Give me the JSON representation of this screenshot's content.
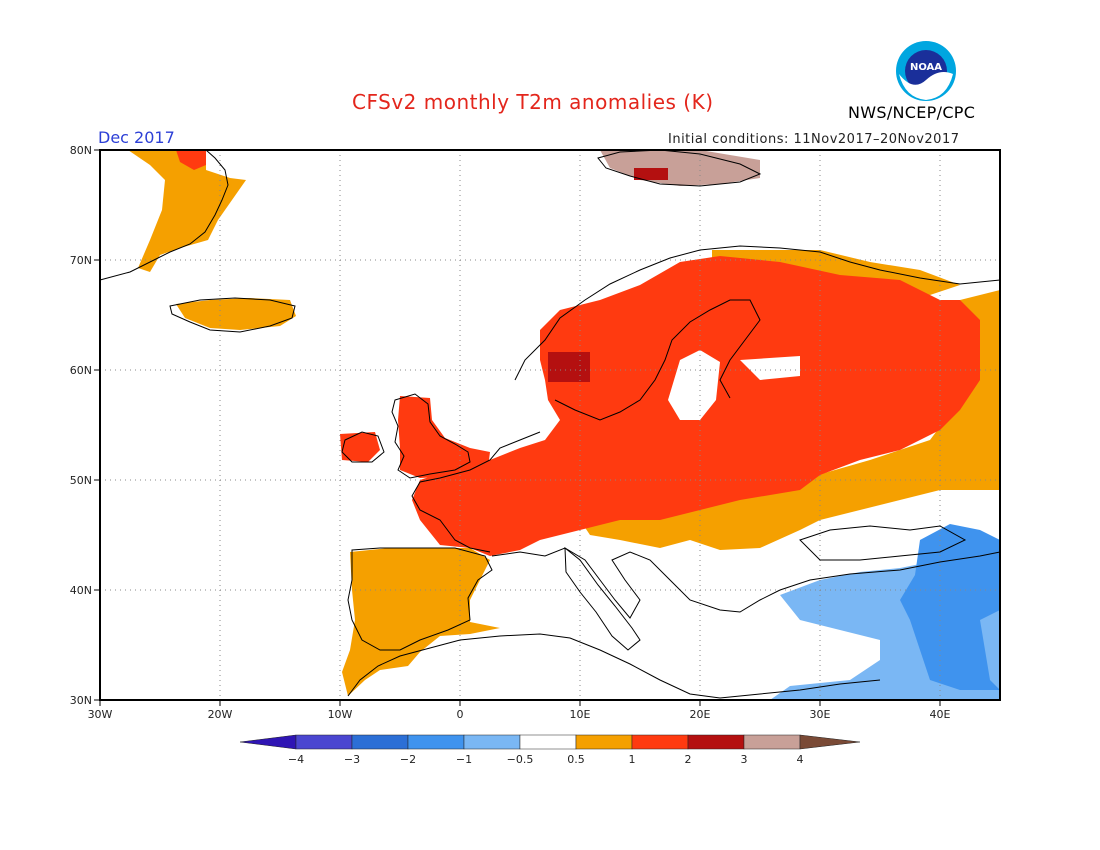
{
  "header": {
    "title": "CFSv2 monthly T2m anomalies (K)",
    "agency": "NWS/NCEP/CPC",
    "logo_text": "NOAA",
    "period": "Dec 2017",
    "initial_conditions": "Initial conditions: 11Nov2017–20Nov2017"
  },
  "map": {
    "projection": "lat-lon",
    "lon_range": [
      -30,
      45
    ],
    "lat_range": [
      30,
      80
    ],
    "lon_ticks": [
      "30W",
      "20W",
      "10W",
      "0",
      "10E",
      "20E",
      "30E",
      "40E"
    ],
    "lat_ticks": [
      "30N",
      "40N",
      "50N",
      "60N",
      "70N",
      "80N"
    ],
    "grid": "dotted"
  },
  "colorbar": {
    "labels": [
      "−4",
      "−3",
      "−2",
      "−1",
      "−0.5",
      "0.5",
      "1",
      "2",
      "3",
      "4"
    ],
    "colors": [
      "#2f15b4",
      "#4a46d0",
      "#2c6fd6",
      "#3f93ee",
      "#7ab7f4",
      "#ffffff",
      "#f5a000",
      "#ff3a10",
      "#b41010",
      "#c8a098",
      "#7a4a36"
    ]
  }
}
